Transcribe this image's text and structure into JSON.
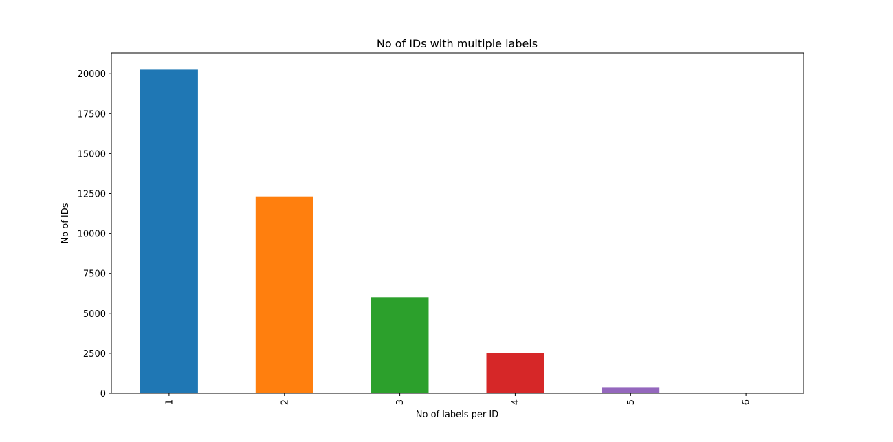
{
  "chart_data": {
    "type": "bar",
    "title": "No of IDs with multiple labels",
    "xlabel": "No of labels per ID",
    "ylabel": "No of IDs",
    "categories": [
      "1",
      "2",
      "3",
      "4",
      "5",
      "6"
    ],
    "values": [
      20250,
      12320,
      6010,
      2540,
      370,
      20
    ],
    "colors": [
      "#1f77b4",
      "#ff7f0e",
      "#2ca02c",
      "#d62728",
      "#9467bd",
      "#8c564b"
    ],
    "ylim": [
      0,
      21300
    ],
    "yticks": [
      0,
      2500,
      5000,
      7500,
      10000,
      12500,
      15000,
      17500,
      20000
    ],
    "ytick_labels": [
      "0",
      "2500",
      "5000",
      "7500",
      "10000",
      "12500",
      "15000",
      "17500",
      "20000"
    ],
    "xtick_rotation": "vertical",
    "grid": false,
    "legend": "none"
  }
}
